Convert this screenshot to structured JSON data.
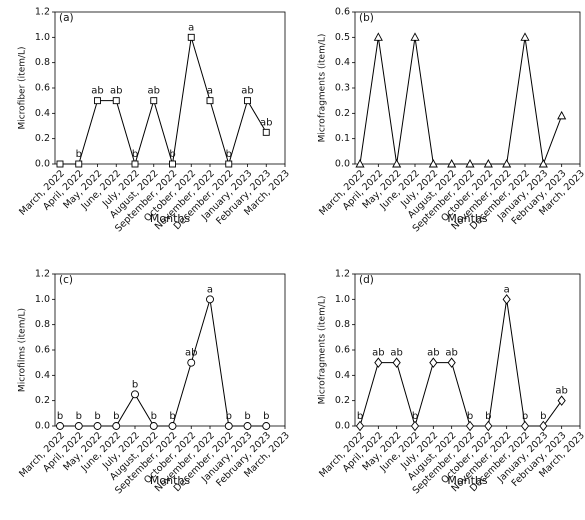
{
  "chart_data": [
    {
      "type": "line",
      "title": "(a)",
      "y_label": "Microfiber (item/L)",
      "x_label": "Months",
      "marker": "square",
      "color": "#000000",
      "categories": [
        "March, 2022",
        "April, 2022",
        "May, 2022",
        "June, 2022",
        "July, 2022",
        "August, 2022",
        "September, 2022",
        "October, 2022",
        "November, 2022",
        "December, 2022",
        "January, 2023",
        "February, 2023",
        "March, 2023"
      ],
      "values": [
        0,
        0,
        0.5,
        0.5,
        0,
        0.5,
        0,
        1.0,
        0.5,
        0,
        0.5,
        0.25,
        null
      ],
      "annotations": [
        null,
        "b",
        "ab",
        "ab",
        "b",
        "ab",
        "b",
        "a",
        "a",
        "b",
        "ab",
        "ab",
        null
      ],
      "ylim": [
        0,
        1.2
      ],
      "yticks": [
        {
          "value": 0,
          "label": "0.0"
        },
        0.2,
        0.4,
        0.6,
        0.8,
        {
          "value": 1,
          "label": "1.0"
        },
        1.2
      ]
    },
    {
      "type": "line",
      "title": "(b)",
      "y_label": "Microfragments (item/L)",
      "x_label": "Months",
      "marker": "triangle",
      "color": "#000000",
      "categories": [
        "March, 2022",
        "April, 2022",
        "May, 2022",
        "June, 2022",
        "July, 2022",
        "August, 2022",
        "September, 2022",
        "October, 2022",
        "November, 2022",
        "December, 2022",
        "January, 2023",
        "February, 2023",
        "March, 2023"
      ],
      "values": [
        0,
        0.5,
        0,
        0.5,
        0,
        0,
        0,
        0,
        0,
        0.5,
        0,
        0.19,
        null
      ],
      "ylim": [
        0,
        0.6
      ],
      "yticks": [
        {
          "value": 0,
          "label": "0.0"
        },
        0.1,
        0.2,
        0.3,
        0.4,
        0.5,
        0.6
      ]
    },
    {
      "type": "line",
      "title": "(c)",
      "y_label": "Microfilms (item/L)",
      "x_label": "Months",
      "marker": "circle",
      "color": "#000000",
      "categories": [
        "March, 2022",
        "April, 2022",
        "May, 2022",
        "June, 2022",
        "July, 2022",
        "August, 2022",
        "September, 2022",
        "October, 2022",
        "November, 2022",
        "December, 2022",
        "January, 2023",
        "February, 2023",
        "March, 2023"
      ],
      "values": [
        0,
        0,
        0,
        0,
        0.25,
        0,
        0,
        0.5,
        1.0,
        0,
        0,
        0,
        null
      ],
      "annotations": [
        "b",
        "b",
        "b",
        "b",
        "b",
        "b",
        "b",
        "ab",
        "a",
        "b",
        "b",
        "b",
        null
      ],
      "ylim": [
        0,
        1.2
      ],
      "yticks": [
        {
          "value": 0,
          "label": "0.0"
        },
        0.2,
        0.4,
        0.6,
        0.8,
        {
          "value": 1,
          "label": "1.0"
        },
        1.2
      ]
    },
    {
      "type": "line",
      "title": "(d)",
      "y_label": "Microfragments (item/L)",
      "x_label": "Months",
      "marker": "diamond",
      "color": "#000000",
      "categories": [
        "March, 2022",
        "April, 2022",
        "May, 2022",
        "June, 2022",
        "July, 2022",
        "August, 2022",
        "September, 2022",
        "October, 2022",
        "November, 2022",
        "December, 2022",
        "January, 2023",
        "February, 2023",
        "March, 2023"
      ],
      "values": [
        0,
        0.5,
        0.5,
        0,
        0.5,
        0.5,
        0,
        0,
        1.0,
        0,
        0,
        0.2,
        null
      ],
      "annotations": [
        "b",
        "ab",
        "ab",
        "b",
        "ab",
        "ab",
        "b",
        "b",
        "a",
        "b",
        "b",
        "ab",
        null
      ],
      "ylim": [
        0,
        1.2
      ],
      "yticks": [
        {
          "value": 0,
          "label": "0.0"
        },
        0.2,
        0.4,
        0.6,
        0.8,
        {
          "value": 1,
          "label": "1.0"
        },
        1.2
      ]
    }
  ]
}
